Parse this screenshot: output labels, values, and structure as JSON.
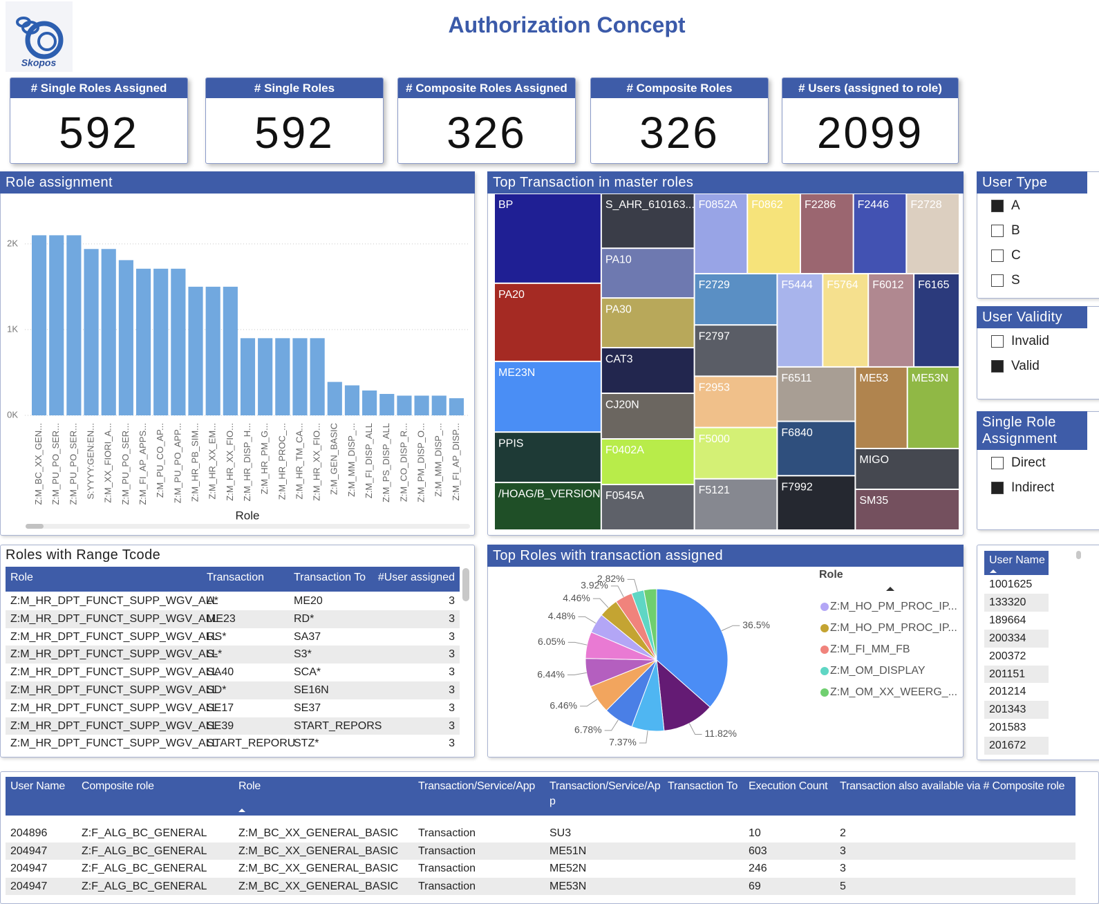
{
  "header": {
    "title": "Authorization Concept",
    "logo_text": "Skopos"
  },
  "kpis": [
    {
      "title": "# Single Roles Assigned",
      "value": 592
    },
    {
      "title": "# Single Roles",
      "value": 592
    },
    {
      "title": "# Composite Roles Assigned",
      "value": 326
    },
    {
      "title": "# Composite Roles",
      "value": 326
    },
    {
      "title": "# Users (assigned to role)",
      "value": 2099
    }
  ],
  "chart_data": [
    {
      "type": "bar",
      "title": "Role assignment",
      "x_label": "Role",
      "categories": [
        "Z:M_BC_XX_GEN...",
        "Z:M_PU_PO_SER...",
        "Z:M_PU_PO_SER...",
        "S:YYYY:GEN:EN...",
        "Z:M_XX_FIORI_A...",
        "Z:M_PU_PO_SER...",
        "Z:M_FI_AP_APPS...",
        "Z:M_PU_CO_AP...",
        "Z:M_PU_PO_APP...",
        "Z:M_HR_PB_SIM...",
        "Z:M_HR_XX_EM...",
        "Z:M_HR_XX_FIO...",
        "Z:M_HR_DISP_H...",
        "Z:M_HR_PM_G...",
        "Z:M_HR_PROC_...",
        "Z:M_HR_TM_CA...",
        "Z:M_HR_XX_FIO...",
        "Z:M_GEN_BASIC",
        "Z:M_MM_DISP_...",
        "Z:M_FI_DISP_ALL",
        "Z:M_PS_DISP_ALL",
        "Z:M_CO_DISP_R...",
        "Z:M_PM_DISP_O...",
        "Z:M_MM_DISP_...",
        "Z:M_FI_AP_DISP..."
      ],
      "values": [
        2100,
        2100,
        2100,
        1940,
        1940,
        1810,
        1710,
        1710,
        1710,
        1500,
        1500,
        1500,
        900,
        900,
        900,
        900,
        900,
        390,
        350,
        290,
        250,
        230,
        230,
        230,
        200
      ],
      "color": "#71a8df",
      "ylim": [
        0,
        2200
      ],
      "yticks": [
        {
          "value": 0,
          "label": "0K"
        },
        {
          "value": 1000,
          "label": "1K"
        },
        {
          "value": 2000,
          "label": "2K"
        }
      ],
      "grid": true
    },
    {
      "type": "treemap",
      "title": "Top Transaction in master roles",
      "labels": [
        "BP",
        "PA20",
        "ME23N",
        "PPIS",
        "/HOAG/B_VERSION",
        "S_AHR_610163...",
        "PA10",
        "PA30",
        "CAT3",
        "CJ20N",
        "F0402A",
        "F0545A",
        "F0852A",
        "F0862",
        "F2286",
        "F2446",
        "F2728",
        "F2729",
        "F2797",
        "F2953",
        "F5000",
        "F5121",
        "F5444",
        "F5764",
        "F6012",
        "F6165",
        "F6511",
        "F6840",
        "F7992",
        "ME53",
        "ME53N",
        "MIGO",
        "SM35"
      ],
      "values": [
        226,
        197,
        178,
        127,
        120,
        120,
        109,
        109,
        100,
        100,
        100,
        100,
        100,
        100,
        100,
        100,
        100,
        100,
        100,
        100,
        100,
        100,
        100,
        100,
        100,
        100,
        100,
        100,
        100,
        100,
        100,
        100,
        100
      ],
      "colors": [
        "#1f1f94",
        "#a52a23",
        "#4a8ef5",
        "#1e3a36",
        "#1f4f27",
        "#3a3d48",
        "#6e79b0",
        "#b8a85a",
        "#22264e",
        "#6b6660",
        "#b8ec4a",
        "#5e6169",
        "#98a4e6",
        "#f6e37a",
        "#9b6670",
        "#4252b2",
        "#dccfc0",
        "#5a8fc4",
        "#5a5d66",
        "#f0c08a",
        "#d4f075",
        "#868890",
        "#a8b4ec",
        "#f5e08e",
        "#b08890",
        "#2b3a7c",
        "#a89e94",
        "#2f4f7d",
        "#252830",
        "#b0844e",
        "#90b845",
        "#454850",
        "#74505e"
      ]
    },
    {
      "type": "pie",
      "title": "Top Roles with transaction assigned",
      "legend_title": "Role",
      "values": [
        36.5,
        11.82,
        7.37,
        6.78,
        6.46,
        6.44,
        6.05,
        4.48,
        4.46,
        3.92,
        2.82,
        2.9
      ],
      "value_labels": [
        "36.5%",
        "11.82%",
        "7.37%",
        "6.78%",
        "6.46%",
        "6.44%",
        "6.05%",
        "4.48%",
        "4.46%",
        "3.92%",
        "2.82%",
        null
      ],
      "colors": [
        "#4b8df5",
        "#641b74",
        "#4fb6f2",
        "#4a7fe6",
        "#f2a55e",
        "#b45fbf",
        "#e97ad3",
        "#b3a6f6",
        "#c4a432",
        "#f0837c",
        "#5fd6c4",
        "#6fcf6f"
      ],
      "legend": [
        {
          "name": "Z:M_HO_PM_PROC_IP...",
          "color": "#b3a6f6"
        },
        {
          "name": "Z:M_HO_PM_PROC_IP...",
          "color": "#c4a432"
        },
        {
          "name": "Z:M_FI_MM_FB",
          "color": "#f0837c"
        },
        {
          "name": "Z:M_OM_DISPLAY",
          "color": "#5fd6c4"
        },
        {
          "name": "Z:M_OM_XX_WEERG_...",
          "color": "#6fcf6f"
        }
      ]
    }
  ],
  "slicers": [
    {
      "title": "User Type",
      "options": [
        {
          "label": "A",
          "checked": true
        },
        {
          "label": "B",
          "checked": false
        },
        {
          "label": "C",
          "checked": false
        },
        {
          "label": "S",
          "checked": false
        }
      ]
    },
    {
      "title": "User Validity",
      "options": [
        {
          "label": "Invalid",
          "checked": false
        },
        {
          "label": "Valid",
          "checked": true
        }
      ]
    },
    {
      "title": "Single Role Assignment",
      "options": [
        {
          "label": "Direct",
          "checked": false
        },
        {
          "label": "Indirect",
          "checked": true
        }
      ]
    }
  ],
  "range_table": {
    "title": "Roles with Range Tcode",
    "columns": [
      "Role",
      "Transaction",
      "Transaction To",
      "#User assigned"
    ],
    "rows": [
      [
        "Z:M_HR_DPT_FUNCT_SUPP_WGV_ALL",
        "A*",
        "ME20",
        3
      ],
      [
        "Z:M_HR_DPT_FUNCT_SUPP_WGV_ALL",
        "ME23",
        "RD*",
        3
      ],
      [
        "Z:M_HR_DPT_FUNCT_SUPP_WGV_ALL",
        "RS*",
        "SA37",
        3
      ],
      [
        "Z:M_HR_DPT_FUNCT_SUPP_WGV_ALL",
        "S-*",
        "S3*",
        3
      ],
      [
        "Z:M_HR_DPT_FUNCT_SUPP_WGV_ALL",
        "SA40",
        "SCA*",
        3
      ],
      [
        "Z:M_HR_DPT_FUNCT_SUPP_WGV_ALL",
        "SD*",
        "SE16N",
        3
      ],
      [
        "Z:M_HR_DPT_FUNCT_SUPP_WGV_ALL",
        "SE17",
        "SE37",
        3
      ],
      [
        "Z:M_HR_DPT_FUNCT_SUPP_WGV_ALL",
        "SE39",
        "START_REPORS",
        3
      ],
      [
        "Z:M_HR_DPT_FUNCT_SUPP_WGV_ALL",
        "START_REPORU",
        "STZ*",
        3
      ]
    ]
  },
  "user_list": {
    "header": "User Name",
    "items": [
      "1001625",
      "133320",
      "189664",
      "200334",
      "200372",
      "201151",
      "201214",
      "201343",
      "201583",
      "201672"
    ]
  },
  "detail_table": {
    "columns": [
      "User Name",
      "Composite role",
      "Role",
      "Transaction/Service/App",
      "Transaction/Service/App",
      "Transaction To",
      "Execution Count",
      "Transaction also available via # Composite role"
    ],
    "rows": [
      [
        "204896",
        "Z:F_ALG_BC_GENERAL",
        "Z:M_BC_XX_GENERAL_BASIC",
        "Transaction",
        "SU3",
        null,
        10,
        2
      ],
      [
        "204947",
        "Z:F_ALG_BC_GENERAL",
        "Z:M_BC_XX_GENERAL_BASIC",
        "Transaction",
        "ME51N",
        null,
        603,
        3
      ],
      [
        "204947",
        "Z:F_ALG_BC_GENERAL",
        "Z:M_BC_XX_GENERAL_BASIC",
        "Transaction",
        "ME52N",
        null,
        246,
        3
      ],
      [
        "204947",
        "Z:F_ALG_BC_GENERAL",
        "Z:M_BC_XX_GENERAL_BASIC",
        "Transaction",
        "ME53N",
        null,
        69,
        5
      ]
    ]
  }
}
